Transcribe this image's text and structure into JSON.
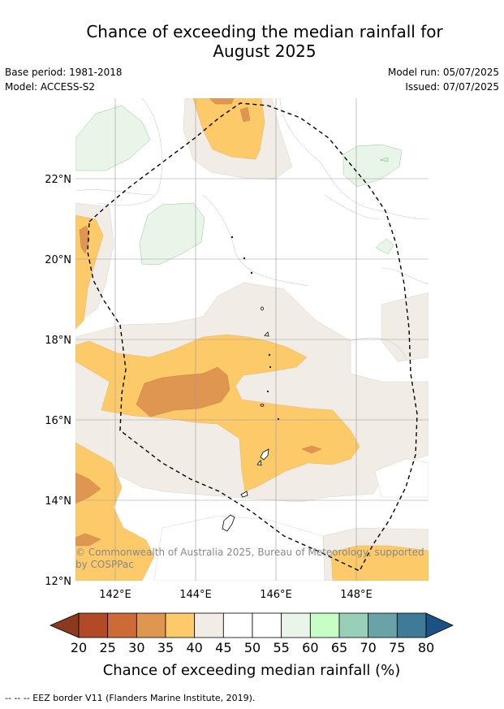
{
  "header": {
    "title_line1": "Chance of exceeding the median rainfall for",
    "title_line2": "August 2025",
    "base_period": "Base period: 1981-2018",
    "model": "Model: ACCESS-S2",
    "model_run": "Model run: 05/07/2025",
    "issued": "Issued: 07/07/2025"
  },
  "map": {
    "lat_labels": [
      "22°N",
      "20°N",
      "18°N",
      "16°N",
      "14°N",
      "12°N"
    ],
    "lon_labels": [
      "142°E",
      "144°E",
      "146°E",
      "148°E"
    ],
    "copyright_line1": "© Commonwealth of Australia 2025, Bureau of Meteorology, supported",
    "copyright_line2": "by COSPPac"
  },
  "colorbar": {
    "ticks": [
      "20",
      "25",
      "30",
      "35",
      "40",
      "45",
      "50",
      "55",
      "60",
      "65",
      "70",
      "75",
      "80"
    ],
    "colors": [
      "#8b3a20",
      "#b24a28",
      "#cd6a35",
      "#df9650",
      "#fdca6a",
      "#f1ece6",
      "#ffffff",
      "#ffffff",
      "#e9f5e9",
      "#c6fec6",
      "#98cfb8",
      "#6aa3a7",
      "#3f7b96",
      "#1b5183"
    ],
    "title": "Chance of exceeding median rainfall (%)"
  },
  "footer": {
    "legend": "--  --  -- EEZ border V11 (Flanders Marine Institute, 2019)."
  }
}
